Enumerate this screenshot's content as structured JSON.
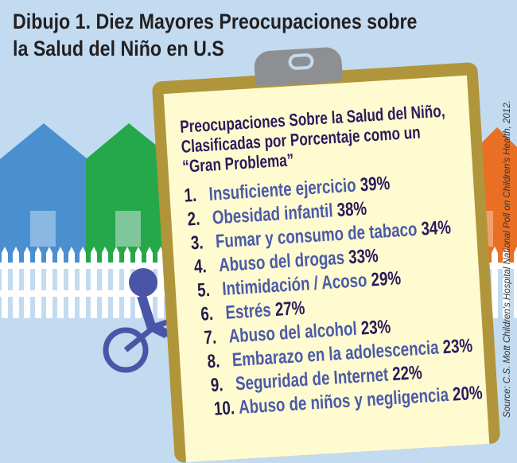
{
  "title_line1": "Dibujo 1. Diez Mayores Preocupaciones sobre",
  "title_line2": "la Salud del Niño en U.S",
  "clipboard": {
    "heading": "Preocupaciones Sobre la Salud del Niño, Clasificadas por Porcentaje como un “Gran Problema”",
    "items": [
      {
        "num": "1.",
        "label": "Insuficiente ejercicio",
        "pct": "39%"
      },
      {
        "num": "2.",
        "label": "Obesidad infantil",
        "pct": "38%"
      },
      {
        "num": "3.",
        "label": "Fumar y consumo de tabaco",
        "pct": "34%"
      },
      {
        "num": "4.",
        "label": "Abuso del drogas",
        "pct": "33%"
      },
      {
        "num": "5.",
        "label": "Intimidación / Acoso",
        "pct": "29%"
      },
      {
        "num": "6.",
        "label": "Estrés",
        "pct": "27%"
      },
      {
        "num": "7.",
        "label": "Abuso del alcohol",
        "pct": "23%"
      },
      {
        "num": "8.",
        "label": "Embarazo en la adolescencia",
        "pct": "23%"
      },
      {
        "num": "9.",
        "label": "Seguridad de Internet",
        "pct": "22%"
      },
      {
        "num": "10.",
        "label": "Abuso de niños y negligencia",
        "pct": "20%"
      }
    ]
  },
  "source": "Source: C.S. Mott Children's Hospital National Poll on Children's Health, 2012.",
  "colors": {
    "background": "#c3dbf0",
    "board": "#b1953a",
    "paper": "#fffbd1",
    "item": "#4b5aa8",
    "percent": "#2b1a5c"
  }
}
